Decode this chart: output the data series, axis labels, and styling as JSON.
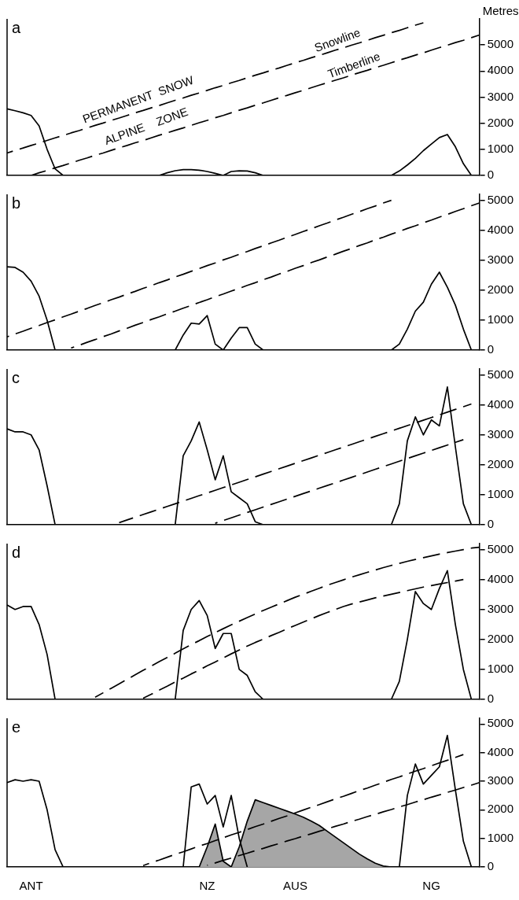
{
  "chart_data": [
    {
      "type": "line",
      "title": "a",
      "ylabel": "Metres",
      "categories": [
        null,
        null,
        null,
        null,
        null,
        null,
        null,
        null,
        null,
        null,
        null,
        null,
        null,
        null,
        null,
        null,
        null,
        null,
        null,
        null,
        null,
        null,
        null,
        null,
        null,
        null,
        null,
        null,
        null,
        null,
        null,
        null,
        null,
        null,
        null,
        null,
        null,
        null,
        null,
        null,
        null,
        null,
        null,
        null,
        null,
        null,
        null,
        null,
        null,
        null,
        null,
        null,
        null,
        null,
        null,
        null,
        null,
        null,
        null,
        null
      ],
      "ylim": [
        0,
        6000
      ],
      "yticks": [
        0,
        1000,
        2000,
        3000,
        4000,
        5000
      ],
      "tick_labels": "y",
      "marker": "none",
      "annotations": [
        "PERMANENT  SNOW",
        "ALPINE    ZONE",
        "Snowline",
        "Timberline"
      ],
      "series": [
        {
          "type": "line",
          "color": "#000000",
          "line_style": "solid",
          "values": [
            2550,
            2480,
            2400,
            2300,
            1900,
            1000,
            250,
            0,
            null,
            null,
            null,
            null,
            null,
            null,
            null,
            null,
            null,
            null,
            null,
            null,
            null,
            null,
            null,
            null,
            null,
            null,
            null,
            null,
            null,
            null,
            null,
            null,
            null,
            null,
            null,
            null,
            null,
            null,
            null,
            null,
            null,
            null,
            null,
            null,
            null,
            null,
            null,
            null,
            null,
            null,
            null,
            null,
            null,
            null,
            null,
            null,
            null,
            null,
            null,
            null
          ]
        },
        {
          "type": "line",
          "color": "#000000",
          "line_style": "solid",
          "values": [
            null,
            null,
            null,
            null,
            null,
            null,
            null,
            null,
            null,
            null,
            null,
            null,
            null,
            null,
            null,
            null,
            null,
            null,
            null,
            0,
            100,
            180,
            220,
            220,
            200,
            150,
            80,
            0,
            150,
            180,
            170,
            100,
            0,
            null,
            null,
            null,
            null,
            null,
            null,
            null,
            null,
            null,
            null,
            null,
            null,
            null,
            null,
            null,
            null,
            null,
            null,
            null,
            null,
            null,
            null,
            null,
            null,
            null,
            null,
            null
          ]
        },
        {
          "type": "line",
          "color": "#000000",
          "line_style": "solid",
          "values": [
            null,
            null,
            null,
            null,
            null,
            null,
            null,
            null,
            null,
            null,
            null,
            null,
            null,
            null,
            null,
            null,
            null,
            null,
            null,
            null,
            null,
            null,
            null,
            null,
            null,
            null,
            null,
            null,
            null,
            null,
            null,
            null,
            null,
            null,
            null,
            null,
            null,
            null,
            null,
            null,
            null,
            null,
            null,
            null,
            null,
            null,
            null,
            null,
            0,
            170,
            400,
            650,
            950,
            1200,
            1450,
            1570,
            1100,
            450,
            0,
            null
          ]
        },
        {
          "type": "line",
          "color": "#000000",
          "line_style": "dashed",
          "values": [
            860,
            960,
            1050,
            1150,
            1240,
            1340,
            1440,
            1530,
            1630,
            1720,
            1820,
            1920,
            2010,
            2110,
            2200,
            2300,
            2400,
            2490,
            2590,
            2680,
            2780,
            2880,
            2970,
            3070,
            3160,
            3260,
            3360,
            3450,
            3550,
            3640,
            3740,
            3840,
            3930,
            4030,
            4120,
            4220,
            4320,
            4410,
            4510,
            4600,
            4700,
            4800,
            4890,
            4990,
            5080,
            5180,
            5280,
            5370,
            5470,
            5560,
            5660,
            5760,
            5850,
            null,
            null,
            null,
            null,
            null,
            null,
            null
          ]
        },
        {
          "type": "line",
          "color": "#000000",
          "line_style": "dashed",
          "values": [
            null,
            null,
            null,
            0,
            100,
            190,
            290,
            380,
            480,
            580,
            670,
            770,
            860,
            960,
            1060,
            1150,
            1250,
            1340,
            1440,
            1540,
            1630,
            1730,
            1820,
            1920,
            2020,
            2110,
            2210,
            2300,
            2400,
            2500,
            2590,
            2690,
            2780,
            2880,
            2980,
            3070,
            3170,
            3260,
            3360,
            3460,
            3550,
            3650,
            3740,
            3840,
            3940,
            4030,
            4130,
            4220,
            4320,
            4420,
            4510,
            4610,
            4700,
            4800,
            4900,
            4990,
            5090,
            5180,
            5280,
            5380
          ]
        }
      ]
    },
    {
      "type": "line",
      "title": "b",
      "categories": [
        null,
        null,
        null,
        null,
        null,
        null,
        null,
        null,
        null,
        null,
        null,
        null,
        null,
        null,
        null,
        null,
        null,
        null,
        null,
        null,
        null,
        null,
        null,
        null,
        null,
        null,
        null,
        null,
        null,
        null,
        null,
        null,
        null,
        null,
        null,
        null,
        null,
        null,
        null,
        null,
        null,
        null,
        null,
        null,
        null,
        null,
        null,
        null,
        null,
        null,
        null,
        null,
        null,
        null,
        null,
        null,
        null,
        null,
        null,
        null
      ],
      "ylim": [
        0,
        5200
      ],
      "yticks": [
        0,
        1000,
        2000,
        3000,
        4000,
        5000
      ],
      "tick_labels": "y",
      "marker": "none",
      "series": [
        {
          "type": "line",
          "color": "#000000",
          "line_style": "solid",
          "values": [
            2780,
            2760,
            2600,
            2300,
            1800,
            1000,
            0,
            null,
            null,
            null,
            null,
            null,
            null,
            null,
            null,
            null,
            null,
            null,
            null,
            null,
            null,
            null,
            null,
            null,
            null,
            null,
            null,
            null,
            null,
            null,
            null,
            null,
            null,
            null,
            null,
            null,
            null,
            null,
            null,
            null,
            null,
            null,
            null,
            null,
            null,
            null,
            null,
            null,
            null,
            null,
            null,
            null,
            null,
            null,
            null,
            null,
            null,
            null,
            null,
            null
          ]
        },
        {
          "type": "line",
          "color": "#000000",
          "line_style": "solid",
          "values": [
            null,
            null,
            null,
            null,
            null,
            null,
            null,
            null,
            null,
            null,
            null,
            null,
            null,
            null,
            null,
            null,
            null,
            null,
            null,
            null,
            null,
            0,
            500,
            900,
            870,
            1150,
            200,
            0,
            400,
            750,
            750,
            200,
            0,
            null,
            null,
            null,
            null,
            null,
            null,
            null,
            null,
            null,
            null,
            null,
            null,
            null,
            null,
            null,
            null,
            null,
            null,
            null,
            null,
            null,
            null,
            null,
            null,
            null,
            null,
            null
          ]
        },
        {
          "type": "line",
          "color": "#000000",
          "line_style": "solid",
          "values": [
            null,
            null,
            null,
            null,
            null,
            null,
            null,
            null,
            null,
            null,
            null,
            null,
            null,
            null,
            null,
            null,
            null,
            null,
            null,
            null,
            null,
            null,
            null,
            null,
            null,
            null,
            null,
            null,
            null,
            null,
            null,
            null,
            null,
            null,
            null,
            null,
            null,
            null,
            null,
            null,
            null,
            null,
            null,
            null,
            null,
            null,
            null,
            null,
            0,
            200,
            700,
            1300,
            1600,
            2200,
            2600,
            2100,
            1500,
            700,
            0,
            null
          ]
        },
        {
          "type": "line",
          "color": "#000000",
          "line_style": "dashed",
          "values": [
            440,
            540,
            630,
            730,
            820,
            920,
            1010,
            1110,
            1200,
            1300,
            1390,
            1490,
            1580,
            1680,
            1770,
            1870,
            1960,
            2060,
            2150,
            2250,
            2340,
            2440,
            2530,
            2630,
            2720,
            2820,
            2910,
            3010,
            3100,
            3200,
            3290,
            3390,
            3480,
            3580,
            3670,
            3770,
            3860,
            3960,
            4050,
            4150,
            4240,
            4340,
            4430,
            4530,
            4620,
            4720,
            4810,
            4910,
            5000,
            null,
            null,
            null,
            null,
            null,
            null,
            null,
            null,
            null,
            null,
            null
          ]
        },
        {
          "type": "line",
          "color": "#000000",
          "line_style": "dashed",
          "values": [
            null,
            null,
            null,
            null,
            null,
            null,
            null,
            null,
            70,
            160,
            260,
            350,
            450,
            540,
            640,
            730,
            830,
            920,
            1020,
            1110,
            1210,
            1300,
            1400,
            1490,
            1590,
            1680,
            1780,
            1870,
            1970,
            2060,
            2160,
            2250,
            2350,
            2440,
            2540,
            2630,
            2730,
            2820,
            2920,
            3010,
            3110,
            3200,
            3300,
            3390,
            3490,
            3580,
            3680,
            3770,
            3870,
            3960,
            4060,
            4150,
            4250,
            4340,
            4440,
            4530,
            4630,
            4720,
            4820,
            4910
          ]
        }
      ]
    },
    {
      "type": "line",
      "title": "c",
      "categories": [
        null,
        null,
        null,
        null,
        null,
        null,
        null,
        null,
        null,
        null,
        null,
        null,
        null,
        null,
        null,
        null,
        null,
        null,
        null,
        null,
        null,
        null,
        null,
        null,
        null,
        null,
        null,
        null,
        null,
        null,
        null,
        null,
        null,
        null,
        null,
        null,
        null,
        null,
        null,
        null,
        null,
        null,
        null,
        null,
        null,
        null,
        null,
        null,
        null,
        null,
        null,
        null,
        null,
        null,
        null,
        null,
        null,
        null,
        null,
        null
      ],
      "ylim": [
        0,
        5200
      ],
      "yticks": [
        0,
        1000,
        2000,
        3000,
        4000,
        5000
      ],
      "tick_labels": "y",
      "marker": "none",
      "series": [
        {
          "type": "line",
          "color": "#000000",
          "line_style": "solid",
          "values": [
            3200,
            3100,
            3100,
            3000,
            2500,
            1300,
            0,
            null,
            null,
            null,
            null,
            null,
            null,
            null,
            null,
            null,
            null,
            null,
            null,
            null,
            null,
            null,
            null,
            null,
            null,
            null,
            null,
            null,
            null,
            null,
            null,
            null,
            null,
            null,
            null,
            null,
            null,
            null,
            null,
            null,
            null,
            null,
            null,
            null,
            null,
            null,
            null,
            null,
            null,
            null,
            null,
            null,
            null,
            null,
            null,
            null,
            null,
            null,
            null,
            null
          ]
        },
        {
          "type": "line",
          "color": "#000000",
          "line_style": "solid",
          "values": [
            null,
            null,
            null,
            null,
            null,
            null,
            null,
            null,
            null,
            null,
            null,
            null,
            null,
            null,
            null,
            null,
            null,
            null,
            null,
            null,
            null,
            0,
            2300,
            2800,
            3430,
            2500,
            1500,
            2300,
            1100,
            900,
            700,
            100,
            0,
            null,
            null,
            null,
            null,
            null,
            null,
            null,
            null,
            null,
            null,
            null,
            null,
            null,
            null,
            null,
            null,
            null,
            null,
            null,
            null,
            null,
            null,
            null,
            null,
            null,
            null,
            null
          ]
        },
        {
          "type": "line",
          "color": "#000000",
          "line_style": "solid",
          "values": [
            null,
            null,
            null,
            null,
            null,
            null,
            null,
            null,
            null,
            null,
            null,
            null,
            null,
            null,
            null,
            null,
            null,
            null,
            null,
            null,
            null,
            null,
            null,
            null,
            null,
            null,
            null,
            null,
            null,
            null,
            null,
            null,
            null,
            null,
            null,
            null,
            null,
            null,
            null,
            null,
            null,
            null,
            null,
            null,
            null,
            null,
            null,
            null,
            0,
            700,
            2800,
            3600,
            3000,
            3500,
            3300,
            4600,
            2600,
            700,
            0,
            null
          ]
        },
        {
          "type": "line",
          "color": "#000000",
          "line_style": "dashed",
          "values": [
            null,
            null,
            null,
            null,
            null,
            null,
            null,
            null,
            null,
            null,
            null,
            null,
            null,
            null,
            70,
            160,
            250,
            340,
            430,
            520,
            610,
            700,
            790,
            880,
            970,
            1060,
            1150,
            1240,
            1330,
            1420,
            1510,
            1600,
            1690,
            1780,
            1870,
            1960,
            2050,
            2140,
            2230,
            2320,
            2410,
            2500,
            2590,
            2680,
            2770,
            2860,
            2950,
            3040,
            3130,
            3220,
            3310,
            3400,
            3490,
            3580,
            3670,
            3760,
            3850,
            3940,
            4030,
            null
          ]
        },
        {
          "type": "line",
          "color": "#000000",
          "line_style": "dashed",
          "values": [
            null,
            null,
            null,
            null,
            null,
            null,
            null,
            null,
            null,
            null,
            null,
            null,
            null,
            null,
            null,
            null,
            null,
            null,
            null,
            null,
            null,
            null,
            null,
            null,
            null,
            null,
            50,
            140,
            230,
            320,
            410,
            500,
            590,
            680,
            770,
            860,
            950,
            1040,
            1130,
            1220,
            1310,
            1400,
            1490,
            1580,
            1670,
            1760,
            1850,
            1940,
            2030,
            2120,
            2210,
            2300,
            2390,
            2480,
            2570,
            2660,
            2750,
            2840,
            null,
            null
          ]
        }
      ]
    },
    {
      "type": "line",
      "title": "d",
      "categories": [
        null,
        null,
        null,
        null,
        null,
        null,
        null,
        null,
        null,
        null,
        null,
        null,
        null,
        null,
        null,
        null,
        null,
        null,
        null,
        null,
        null,
        null,
        null,
        null,
        null,
        null,
        null,
        null,
        null,
        null,
        null,
        null,
        null,
        null,
        null,
        null,
        null,
        null,
        null,
        null,
        null,
        null,
        null,
        null,
        null,
        null,
        null,
        null,
        null,
        null,
        null,
        null,
        null,
        null,
        null,
        null,
        null,
        null,
        null,
        null
      ],
      "ylim": [
        0,
        5200
      ],
      "yticks": [
        0,
        1000,
        2000,
        3000,
        4000,
        5000
      ],
      "tick_labels": "y",
      "marker": "none",
      "series": [
        {
          "type": "line",
          "color": "#000000",
          "line_style": "solid",
          "values": [
            3150,
            3000,
            3100,
            3100,
            2500,
            1500,
            0,
            null,
            null,
            null,
            null,
            null,
            null,
            null,
            null,
            null,
            null,
            null,
            null,
            null,
            null,
            null,
            null,
            null,
            null,
            null,
            null,
            null,
            null,
            null,
            null,
            null,
            null,
            null,
            null,
            null,
            null,
            null,
            null,
            null,
            null,
            null,
            null,
            null,
            null,
            null,
            null,
            null,
            null,
            null,
            null,
            null,
            null,
            null,
            null,
            null,
            null,
            null,
            null,
            null
          ]
        },
        {
          "type": "line",
          "color": "#000000",
          "line_style": "solid",
          "values": [
            null,
            null,
            null,
            null,
            null,
            null,
            null,
            null,
            null,
            null,
            null,
            null,
            null,
            null,
            null,
            null,
            null,
            null,
            null,
            null,
            null,
            0,
            2300,
            3000,
            3300,
            2800,
            1700,
            2200,
            2200,
            1000,
            800,
            250,
            0,
            null,
            null,
            null,
            null,
            null,
            null,
            null,
            null,
            null,
            null,
            null,
            null,
            null,
            null,
            null,
            null,
            null,
            null,
            null,
            null,
            null,
            null,
            null,
            null,
            null,
            null,
            null
          ]
        },
        {
          "type": "line",
          "color": "#000000",
          "line_style": "solid",
          "values": [
            null,
            null,
            null,
            null,
            null,
            null,
            null,
            null,
            null,
            null,
            null,
            null,
            null,
            null,
            null,
            null,
            null,
            null,
            null,
            null,
            null,
            null,
            null,
            null,
            null,
            null,
            null,
            null,
            null,
            null,
            null,
            null,
            null,
            null,
            null,
            null,
            null,
            null,
            null,
            null,
            null,
            null,
            null,
            null,
            null,
            null,
            null,
            null,
            0,
            600,
            2000,
            3600,
            3200,
            3000,
            3700,
            4300,
            2500,
            1000,
            0,
            null
          ]
        },
        {
          "type": "line",
          "color": "#000000",
          "line_style": "dashed",
          "values": [
            null,
            null,
            null,
            null,
            null,
            null,
            null,
            null,
            null,
            null,
            null,
            70,
            220,
            370,
            520,
            670,
            820,
            970,
            1110,
            1260,
            1400,
            1540,
            1690,
            1830,
            1960,
            2100,
            2230,
            2360,
            2490,
            2610,
            2730,
            2850,
            2970,
            3080,
            3190,
            3300,
            3410,
            3510,
            3610,
            3710,
            3810,
            3900,
            3990,
            4080,
            4160,
            4240,
            4320,
            4400,
            4470,
            4540,
            4610,
            4670,
            4730,
            4790,
            4850,
            4900,
            4950,
            5000,
            5050,
            5080
          ]
        },
        {
          "type": "line",
          "color": "#000000",
          "line_style": "dashed",
          "values": [
            null,
            null,
            null,
            null,
            null,
            null,
            null,
            null,
            null,
            null,
            null,
            null,
            null,
            null,
            null,
            null,
            null,
            40,
            170,
            310,
            440,
            580,
            710,
            850,
            980,
            1120,
            1250,
            1380,
            1520,
            1650,
            1780,
            1900,
            2010,
            2130,
            2240,
            2360,
            2470,
            2580,
            2690,
            2800,
            2900,
            3000,
            3100,
            3180,
            3250,
            3320,
            3390,
            3450,
            3510,
            3570,
            3630,
            3690,
            3750,
            3800,
            3850,
            3900,
            3950,
            4000,
            null,
            null
          ]
        }
      ]
    },
    {
      "type": "line",
      "title": "e",
      "categories": [
        null,
        null,
        null,
        "ANT",
        null,
        null,
        null,
        null,
        null,
        null,
        null,
        null,
        null,
        null,
        null,
        null,
        null,
        null,
        null,
        null,
        null,
        null,
        null,
        null,
        null,
        "NZ",
        null,
        null,
        null,
        null,
        null,
        null,
        null,
        null,
        null,
        null,
        "AUS",
        null,
        null,
        null,
        null,
        null,
        null,
        null,
        null,
        null,
        null,
        null,
        null,
        null,
        null,
        null,
        null,
        "NG",
        null,
        null,
        null,
        null,
        null,
        null
      ],
      "ylim": [
        0,
        5200
      ],
      "yticks": [
        0,
        1000,
        2000,
        3000,
        4000,
        5000
      ],
      "marker": "none",
      "series": [
        {
          "type": "area",
          "color": "#a6a6a6",
          "line_style": "solid",
          "values": [
            null,
            null,
            null,
            null,
            null,
            null,
            null,
            null,
            null,
            null,
            null,
            null,
            null,
            null,
            null,
            null,
            null,
            null,
            null,
            null,
            null,
            null,
            null,
            null,
            0,
            700,
            1500,
            200,
            0,
            null,
            null,
            null,
            null,
            null,
            null,
            null,
            null,
            null,
            null,
            null,
            null,
            null,
            null,
            null,
            null,
            null,
            null,
            null,
            null,
            null,
            null,
            null,
            null,
            null,
            null,
            null,
            null,
            null,
            null,
            null
          ]
        },
        {
          "type": "area",
          "color": "#a6a6a6",
          "line_style": "solid",
          "values": [
            null,
            null,
            null,
            null,
            null,
            null,
            null,
            null,
            null,
            null,
            null,
            null,
            null,
            null,
            null,
            null,
            null,
            null,
            null,
            null,
            null,
            null,
            null,
            null,
            null,
            null,
            null,
            null,
            0,
            700,
            1600,
            2350,
            2250,
            2150,
            2050,
            1950,
            1850,
            1740,
            1600,
            1450,
            1250,
            1050,
            850,
            650,
            450,
            280,
            130,
            30,
            0,
            null,
            null,
            null,
            null,
            null,
            null,
            null,
            null,
            null,
            null,
            null
          ]
        },
        {
          "type": "line",
          "color": "#000000",
          "line_style": "solid",
          "values": [
            2950,
            3050,
            3000,
            3050,
            3000,
            2000,
            600,
            0,
            null,
            null,
            null,
            null,
            null,
            null,
            null,
            null,
            null,
            null,
            null,
            null,
            null,
            null,
            null,
            null,
            null,
            null,
            null,
            null,
            null,
            null,
            null,
            null,
            null,
            null,
            null,
            null,
            null,
            null,
            null,
            null,
            null,
            null,
            null,
            null,
            null,
            null,
            null,
            null,
            null,
            null,
            null,
            null,
            null,
            null,
            null,
            null,
            null,
            null,
            null,
            null
          ]
        },
        {
          "type": "line",
          "color": "#000000",
          "line_style": "solid",
          "values": [
            null,
            null,
            null,
            null,
            null,
            null,
            null,
            null,
            null,
            null,
            null,
            null,
            null,
            null,
            null,
            null,
            null,
            null,
            null,
            null,
            null,
            null,
            0,
            2800,
            2900,
            2200,
            2500,
            1400,
            2500,
            1000,
            0,
            null,
            null,
            null,
            null,
            null,
            null,
            null,
            null,
            null,
            null,
            null,
            null,
            null,
            null,
            null,
            null,
            null,
            null,
            null,
            null,
            null,
            null,
            null,
            null,
            null,
            null,
            null,
            null,
            null
          ]
        },
        {
          "type": "line",
          "color": "#000000",
          "line_style": "solid",
          "values": [
            null,
            null,
            null,
            null,
            null,
            null,
            null,
            null,
            null,
            null,
            null,
            null,
            null,
            null,
            null,
            null,
            null,
            null,
            null,
            null,
            null,
            null,
            null,
            null,
            null,
            null,
            null,
            null,
            null,
            null,
            null,
            null,
            null,
            null,
            null,
            null,
            null,
            null,
            null,
            null,
            null,
            null,
            null,
            null,
            null,
            null,
            null,
            null,
            null,
            0,
            2500,
            3600,
            2900,
            3200,
            3500,
            4600,
            2700,
            900,
            0,
            null
          ]
        },
        {
          "type": "line",
          "color": "#000000",
          "line_style": "dashed",
          "values": [
            null,
            null,
            null,
            null,
            null,
            null,
            null,
            null,
            null,
            null,
            null,
            null,
            null,
            null,
            null,
            null,
            null,
            50,
            150,
            240,
            340,
            440,
            530,
            630,
            730,
            820,
            920,
            1020,
            1120,
            1210,
            1310,
            1410,
            1500,
            1600,
            1700,
            1790,
            1890,
            1990,
            2090,
            2180,
            2280,
            2380,
            2470,
            2570,
            2670,
            2760,
            2860,
            2960,
            3060,
            3150,
            3250,
            3350,
            3440,
            3540,
            3640,
            3730,
            3830,
            3930,
            null,
            null
          ]
        },
        {
          "type": "line",
          "color": "#000000",
          "line_style": "dashed",
          "values": [
            null,
            null,
            null,
            null,
            null,
            null,
            null,
            null,
            null,
            null,
            null,
            null,
            null,
            null,
            null,
            null,
            null,
            null,
            null,
            null,
            null,
            null,
            null,
            null,
            null,
            60,
            140,
            230,
            310,
            400,
            480,
            570,
            650,
            740,
            820,
            910,
            990,
            1080,
            1160,
            1250,
            1330,
            1420,
            1500,
            1590,
            1670,
            1760,
            1840,
            1930,
            2010,
            2100,
            2180,
            2270,
            2350,
            2440,
            2520,
            2610,
            2690,
            2780,
            2860,
            2950
          ]
        }
      ]
    }
  ]
}
